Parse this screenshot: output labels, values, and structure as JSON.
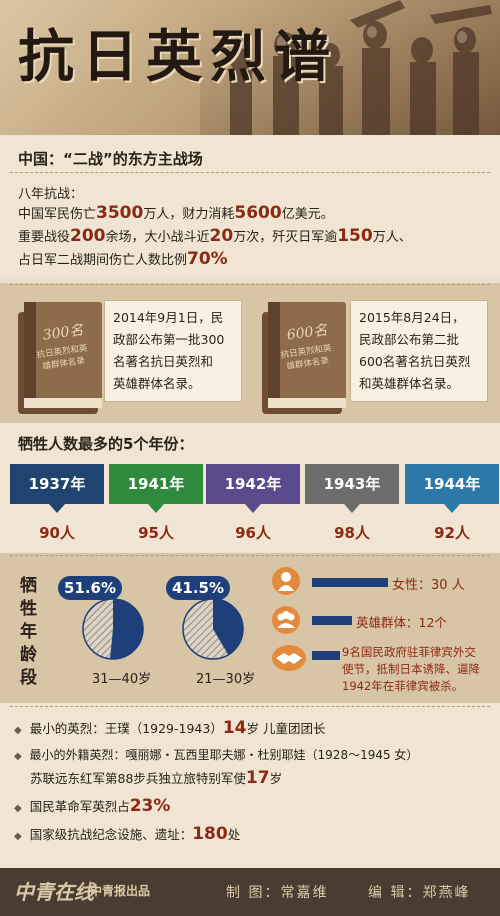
{
  "header": {
    "title": "抗日英烈谱"
  },
  "section1": {
    "title": "中国：“二战”的东方主战场",
    "intro": "八年抗战：",
    "line1": {
      "a": "中国军民伤亡",
      "v1": "3500",
      "b": "万人，财力消耗",
      "v2": "5600",
      "c": "亿美元。"
    },
    "line2": {
      "a": "重要战役",
      "v1": "200",
      "b": "余场，大小战斗近",
      "v2": "20",
      "c": "万次，歼灭日军逾",
      "v3": "150",
      "d": "万人、"
    },
    "line3": {
      "a": "占日军二战期间伤亡人数比例",
      "v1": "70%"
    }
  },
  "books": [
    {
      "cover_num": "300名",
      "cover_sub": "抗日英烈和英雄群体名录",
      "note": [
        "2014年9月1日，民",
        "政部公布第一批300",
        "名著名抗日英烈和",
        "英雄群体名录。"
      ]
    },
    {
      "cover_num": "600名",
      "cover_sub": "抗日英烈和英雄群体名录",
      "note": [
        "2015年8月24日，",
        "民政部公布第二批",
        "600名著名抗日英烈",
        "和英雄群体名录。"
      ]
    }
  ],
  "years_section": {
    "title": "牺牲人数最多的5个年份：",
    "items": [
      {
        "year": "1937年",
        "count": "90人",
        "color": "#1f4470"
      },
      {
        "year": "1941年",
        "count": "95人",
        "color": "#2f8a3e"
      },
      {
        "year": "1942年",
        "count": "96人",
        "color": "#5a4c8c"
      },
      {
        "year": "1943年",
        "count": "98人",
        "color": "#6c6d6c"
      },
      {
        "year": "1944年",
        "count": "92人",
        "color": "#2c79a8"
      }
    ]
  },
  "age_section": {
    "label": "牺牲年龄段",
    "pies": [
      {
        "pct": "51.6%",
        "value": 51.6,
        "range": "31—40岁"
      },
      {
        "pct": "41.5%",
        "value": 41.5,
        "range": "21—30岁"
      }
    ],
    "stats": [
      {
        "icon": "female-icon",
        "label": "女性：30 人"
      },
      {
        "icon": "group-icon",
        "label": "英雄群体：12个"
      },
      {
        "icon": "handshake-icon",
        "label_lines": [
          "9名国民政府驻菲律宾外交",
          "使节，抵制日本诱降、逼降",
          "1942年在菲律宾被杀。"
        ]
      }
    ]
  },
  "facts": {
    "youngest": {
      "a": "最小的英烈：王璞（1929-1943）",
      "v": "14",
      "b": "岁  儿童团团长"
    },
    "foreign": {
      "a": "最小的外籍英烈：嘎丽娜・瓦西里耶夫娜・杜别耶娃（1928～1945 女）",
      "b": "苏联远东红军第88步兵独立旅特别军使",
      "v": "17",
      "c": "岁"
    },
    "kmt": {
      "a": "国民革命军英烈占",
      "v": "23%"
    },
    "sites": {
      "a": "国家级抗战纪念设施、遗址：",
      "v": "180",
      "b": "处"
    }
  },
  "footer": {
    "logo_script": "中青在线",
    "logo_brand": "中青报出品",
    "maker": "制 图：常嘉维",
    "editor": "编 辑：郑燕峰"
  }
}
